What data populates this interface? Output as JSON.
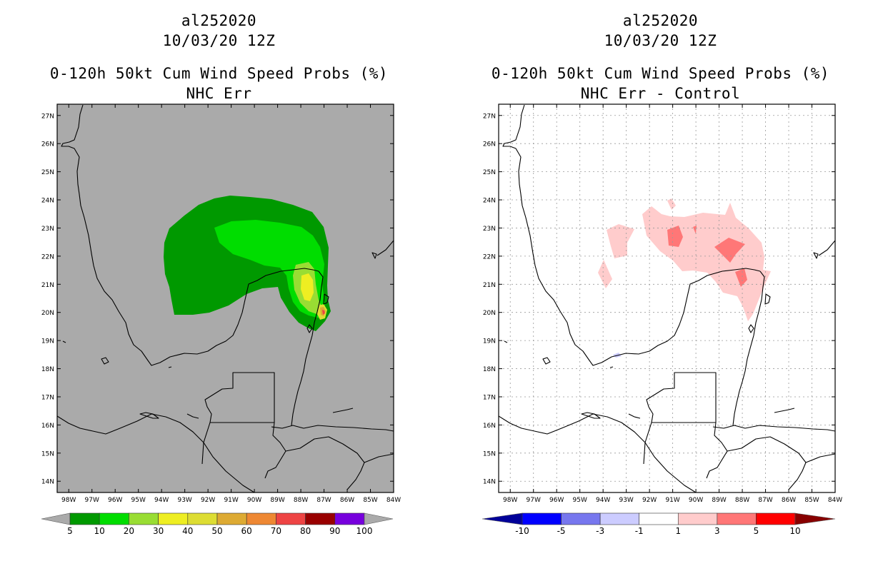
{
  "left_panel": {
    "storm_id": "al252020",
    "datetime": "10/03/20 12Z",
    "product": "0-120h 50kt Cum Wind Speed Probs (%)",
    "subtitle": "NHC Err",
    "background_color": "#aaaaaa",
    "colorbar": {
      "labels": [
        "5",
        "10",
        "20",
        "30",
        "40",
        "50",
        "60",
        "70",
        "80",
        "90",
        "100"
      ],
      "colors": [
        "#009900",
        "#00dd00",
        "#99dd33",
        "#eeee22",
        "#dddd33",
        "#ddaa33",
        "#ee8833",
        "#ee4444",
        "#990000",
        "#7700dd"
      ],
      "under_color": "#aaaaaa",
      "over_color": "#aaaaaa"
    }
  },
  "right_panel": {
    "storm_id": "al252020",
    "datetime": "10/03/20 12Z",
    "product": "0-120h 50kt Cum Wind Speed Probs (%)",
    "subtitle": "NHC Err - Control",
    "background_color": "#ffffff",
    "colorbar": {
      "labels": [
        "-10",
        "-5",
        "-3",
        "-1",
        "1",
        "3",
        "5",
        "10"
      ],
      "colors": [
        "#0000ff",
        "#7777ee",
        "#ccccff",
        "#ffffff",
        "#ffcccc",
        "#ff7777",
        "#ff0000"
      ],
      "under_color": "#000099",
      "over_color": "#880000"
    }
  },
  "axes": {
    "lat_labels": [
      "27N",
      "26N",
      "25N",
      "24N",
      "23N",
      "22N",
      "21N",
      "20N",
      "19N",
      "18N",
      "17N",
      "16N",
      "15N",
      "14N"
    ],
    "lon_labels": [
      "98W",
      "97W",
      "96W",
      "95W",
      "94W",
      "93W",
      "92W",
      "91W",
      "90W",
      "89W",
      "88W",
      "87W",
      "86W",
      "85W",
      "84W"
    ],
    "lat_range": [
      13.6,
      27.4
    ],
    "lon_range": [
      -98.5,
      -84.0
    ]
  }
}
